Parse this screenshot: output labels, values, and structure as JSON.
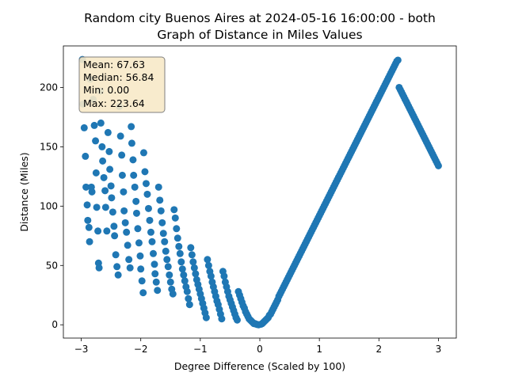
{
  "chart_data": {
    "type": "scatter",
    "title_line1": "Random city Buenos Aires at 2024-05-16 16:00:00  - both",
    "title_line2": "Graph of Distance in Miles Values",
    "xlabel": "Degree Difference (Scaled by 100)",
    "ylabel": "Distance (Miles)",
    "xlim": [
      -3.3,
      3.3
    ],
    "ylim": [
      -11.2,
      235
    ],
    "xticks": [
      -3,
      -2,
      -1,
      0,
      1,
      2,
      3
    ],
    "xtick_labels": [
      "−3",
      "−2",
      "−1",
      "0",
      "1",
      "2",
      "3"
    ],
    "yticks": [
      0,
      50,
      100,
      150,
      200
    ],
    "ytick_labels": [
      "0",
      "50",
      "100",
      "150",
      "200"
    ],
    "grid": false,
    "marker_color": "#1f77b4",
    "stats_box": {
      "mean": "Mean: 67.63",
      "median": "Median: 56.84",
      "min": "Min: 0.00",
      "max": "Max: 223.64",
      "facecolor": "#f7e9c8",
      "placement": "top-left"
    },
    "points": [
      [
        -2.98,
        223.6
      ],
      [
        -2.97,
        186
      ],
      [
        -2.95,
        166
      ],
      [
        -2.93,
        142
      ],
      [
        -2.92,
        116
      ],
      [
        -2.9,
        101
      ],
      [
        -2.89,
        88
      ],
      [
        -2.87,
        82
      ],
      [
        -2.86,
        70
      ],
      [
        -2.85,
        207
      ],
      [
        -2.83,
        116
      ],
      [
        -2.82,
        112
      ],
      [
        -2.8,
        190
      ],
      [
        -2.78,
        168
      ],
      [
        -2.76,
        155
      ],
      [
        -2.75,
        128
      ],
      [
        -2.74,
        99
      ],
      [
        -2.72,
        79
      ],
      [
        -2.71,
        52
      ],
      [
        -2.7,
        48
      ],
      [
        -2.68,
        197
      ],
      [
        -2.67,
        170
      ],
      [
        -2.65,
        150
      ],
      [
        -2.64,
        138
      ],
      [
        -2.62,
        124
      ],
      [
        -2.6,
        113
      ],
      [
        -2.59,
        99
      ],
      [
        -2.57,
        79
      ],
      [
        -2.55,
        162
      ],
      [
        -2.53,
        146
      ],
      [
        -2.52,
        131
      ],
      [
        -2.5,
        117
      ],
      [
        -2.49,
        107
      ],
      [
        -2.47,
        95
      ],
      [
        -2.45,
        83
      ],
      [
        -2.44,
        75
      ],
      [
        -2.42,
        59
      ],
      [
        -2.4,
        49
      ],
      [
        -2.38,
        42
      ],
      [
        -2.36,
        184
      ],
      [
        -2.34,
        159
      ],
      [
        -2.32,
        143
      ],
      [
        -2.31,
        126
      ],
      [
        -2.29,
        112
      ],
      [
        -2.28,
        96
      ],
      [
        -2.26,
        86
      ],
      [
        -2.24,
        78
      ],
      [
        -2.22,
        67
      ],
      [
        -2.2,
        55
      ],
      [
        -2.18,
        48
      ],
      [
        -2.16,
        167
      ],
      [
        -2.15,
        153
      ],
      [
        -2.13,
        139
      ],
      [
        -2.12,
        126
      ],
      [
        -2.1,
        116
      ],
      [
        -2.08,
        104
      ],
      [
        -2.07,
        94
      ],
      [
        -2.05,
        81
      ],
      [
        -2.03,
        69
      ],
      [
        -2.01,
        58
      ],
      [
        -2.0,
        47
      ],
      [
        -1.98,
        37
      ],
      [
        -1.96,
        27
      ],
      [
        -1.95,
        145
      ],
      [
        -1.93,
        129
      ],
      [
        -1.91,
        119
      ],
      [
        -1.89,
        110
      ],
      [
        -1.87,
        98
      ],
      [
        -1.85,
        88
      ],
      [
        -1.83,
        78
      ],
      [
        -1.81,
        70
      ],
      [
        -1.79,
        60
      ],
      [
        -1.77,
        51
      ],
      [
        -1.76,
        43
      ],
      [
        -1.74,
        36
      ],
      [
        -1.72,
        29
      ],
      [
        -1.7,
        116
      ],
      [
        -1.68,
        105
      ],
      [
        -1.66,
        96
      ],
      [
        -1.64,
        86
      ],
      [
        -1.62,
        77
      ],
      [
        -1.6,
        70
      ],
      [
        -1.58,
        62
      ],
      [
        -1.56,
        55
      ],
      [
        -1.54,
        49
      ],
      [
        -1.52,
        42
      ],
      [
        -1.5,
        36
      ],
      [
        -1.48,
        30
      ],
      [
        -1.46,
        26
      ],
      [
        -1.44,
        97
      ],
      [
        -1.42,
        90
      ],
      [
        -1.4,
        81
      ],
      [
        -1.38,
        73
      ],
      [
        -1.36,
        66
      ],
      [
        -1.34,
        60
      ],
      [
        -1.32,
        53
      ],
      [
        -1.3,
        47
      ],
      [
        -1.28,
        42
      ],
      [
        -1.26,
        37
      ],
      [
        -1.24,
        32
      ],
      [
        -1.22,
        28
      ],
      [
        -1.2,
        22
      ],
      [
        -1.18,
        17
      ],
      [
        -1.16,
        65
      ],
      [
        -1.14,
        59
      ],
      [
        -1.12,
        53
      ],
      [
        -1.1,
        48
      ],
      [
        -1.08,
        43
      ],
      [
        -1.06,
        38
      ],
      [
        -1.04,
        34
      ],
      [
        -1.02,
        30
      ],
      [
        -1.0,
        26
      ],
      [
        -0.98,
        22
      ],
      [
        -0.96,
        18
      ],
      [
        -0.94,
        14
      ],
      [
        -0.92,
        10
      ],
      [
        -0.9,
        6
      ],
      [
        -0.88,
        55
      ],
      [
        -0.86,
        50
      ],
      [
        -0.84,
        45
      ],
      [
        -0.82,
        41
      ],
      [
        -0.8,
        36
      ],
      [
        -0.78,
        32
      ],
      [
        -0.76,
        28
      ],
      [
        -0.74,
        24
      ],
      [
        -0.72,
        20
      ],
      [
        -0.7,
        17
      ],
      [
        -0.68,
        13
      ],
      [
        -0.66,
        9
      ],
      [
        -0.64,
        5
      ],
      [
        -0.62,
        45
      ],
      [
        -0.6,
        41
      ],
      [
        -0.58,
        36
      ],
      [
        -0.56,
        32
      ],
      [
        -0.54,
        28
      ],
      [
        -0.52,
        24
      ],
      [
        -0.5,
        21
      ],
      [
        -0.48,
        18
      ],
      [
        -0.46,
        15
      ],
      [
        -0.44,
        12
      ],
      [
        -0.42,
        9
      ],
      [
        -0.4,
        6
      ],
      [
        -0.38,
        4
      ],
      [
        -0.36,
        28
      ],
      [
        -0.34,
        25
      ],
      [
        -0.32,
        22
      ],
      [
        -0.3,
        19
      ],
      [
        -0.28,
        16
      ],
      [
        -0.26,
        14
      ],
      [
        -0.24,
        11
      ],
      [
        -0.22,
        9
      ],
      [
        -0.2,
        7
      ],
      [
        -0.18,
        5
      ],
      [
        -0.16,
        4
      ],
      [
        -0.14,
        3
      ],
      [
        -0.12,
        2
      ],
      [
        -0.1,
        1
      ],
      [
        -0.08,
        1
      ],
      [
        -0.06,
        0.5
      ],
      [
        -0.04,
        0.2
      ],
      [
        -0.02,
        0
      ],
      [
        0.02,
        0.5
      ],
      [
        0.04,
        1
      ],
      [
        0.06,
        2
      ],
      [
        0.08,
        3
      ],
      [
        0.1,
        4
      ],
      [
        0.12,
        5
      ],
      [
        0.14,
        6
      ],
      [
        0.16,
        8
      ],
      [
        0.18,
        9
      ],
      [
        0.2,
        11
      ],
      [
        0.22,
        13
      ],
      [
        0.24,
        15
      ],
      [
        0.26,
        17
      ],
      [
        0.28,
        19
      ],
      [
        0.3,
        21
      ],
      [
        0.32,
        24
      ],
      [
        0.34,
        26
      ],
      [
        0.36,
        28
      ],
      [
        0.38,
        30
      ],
      [
        0.4,
        32
      ],
      [
        0.42,
        34
      ],
      [
        0.44,
        36
      ],
      [
        0.46,
        38
      ],
      [
        0.48,
        40
      ],
      [
        0.5,
        42
      ],
      [
        0.52,
        44
      ],
      [
        0.54,
        46
      ],
      [
        0.56,
        48
      ],
      [
        0.58,
        50
      ],
      [
        0.6,
        52
      ],
      [
        0.62,
        54
      ],
      [
        0.64,
        56
      ],
      [
        0.66,
        58
      ],
      [
        0.68,
        60
      ],
      [
        0.7,
        62
      ],
      [
        0.72,
        64
      ],
      [
        0.74,
        66
      ],
      [
        0.76,
        68
      ],
      [
        0.78,
        70
      ],
      [
        0.8,
        72
      ],
      [
        0.82,
        74
      ],
      [
        0.84,
        76
      ],
      [
        0.86,
        78
      ],
      [
        0.88,
        80
      ],
      [
        0.9,
        82
      ],
      [
        0.92,
        84
      ],
      [
        0.94,
        86
      ],
      [
        0.96,
        88
      ],
      [
        0.98,
        90
      ],
      [
        1.0,
        92
      ],
      [
        1.02,
        94
      ],
      [
        1.04,
        96
      ],
      [
        1.06,
        98
      ],
      [
        1.08,
        100
      ],
      [
        1.1,
        102
      ],
      [
        1.12,
        104
      ],
      [
        1.14,
        106
      ],
      [
        1.16,
        108
      ],
      [
        1.18,
        110
      ],
      [
        1.2,
        112
      ],
      [
        1.22,
        114
      ],
      [
        1.24,
        116
      ],
      [
        1.26,
        118
      ],
      [
        1.28,
        120
      ],
      [
        1.3,
        122
      ],
      [
        1.32,
        124
      ],
      [
        1.34,
        126
      ],
      [
        1.36,
        128
      ],
      [
        1.38,
        130
      ],
      [
        1.4,
        132
      ],
      [
        1.42,
        134
      ],
      [
        1.44,
        136
      ],
      [
        1.46,
        138
      ],
      [
        1.48,
        140
      ],
      [
        1.5,
        142
      ],
      [
        1.52,
        144
      ],
      [
        1.54,
        146
      ],
      [
        1.56,
        148
      ],
      [
        1.58,
        150
      ],
      [
        1.6,
        152
      ],
      [
        1.62,
        154
      ],
      [
        1.64,
        156
      ],
      [
        1.66,
        158
      ],
      [
        1.68,
        160
      ],
      [
        1.7,
        162
      ],
      [
        1.72,
        164
      ],
      [
        1.74,
        166
      ],
      [
        1.76,
        168
      ],
      [
        1.78,
        170
      ],
      [
        1.8,
        172
      ],
      [
        1.82,
        174
      ],
      [
        1.84,
        176
      ],
      [
        1.86,
        178
      ],
      [
        1.88,
        180
      ],
      [
        1.9,
        182
      ],
      [
        1.92,
        184
      ],
      [
        1.94,
        186
      ],
      [
        1.96,
        188
      ],
      [
        1.98,
        190
      ],
      [
        2.0,
        192
      ],
      [
        2.02,
        194
      ],
      [
        2.04,
        196
      ],
      [
        2.06,
        198
      ],
      [
        2.08,
        200
      ],
      [
        2.1,
        202
      ],
      [
        2.12,
        204
      ],
      [
        2.14,
        206
      ],
      [
        2.16,
        208
      ],
      [
        2.18,
        210
      ],
      [
        2.2,
        212
      ],
      [
        2.22,
        214
      ],
      [
        2.24,
        216
      ],
      [
        2.26,
        218
      ],
      [
        2.28,
        220
      ],
      [
        2.3,
        222
      ],
      [
        2.32,
        223
      ],
      [
        2.34,
        200
      ],
      [
        2.36,
        198
      ],
      [
        2.38,
        196
      ],
      [
        2.4,
        194
      ],
      [
        2.42,
        192
      ],
      [
        2.44,
        190
      ],
      [
        2.46,
        188
      ],
      [
        2.48,
        186
      ],
      [
        2.5,
        184
      ],
      [
        2.52,
        182
      ],
      [
        2.54,
        180
      ],
      [
        2.56,
        178
      ],
      [
        2.58,
        176
      ],
      [
        2.6,
        174
      ],
      [
        2.62,
        172
      ],
      [
        2.64,
        170
      ],
      [
        2.66,
        168
      ],
      [
        2.68,
        166
      ],
      [
        2.7,
        164
      ],
      [
        2.72,
        162
      ],
      [
        2.74,
        160
      ],
      [
        2.76,
        158
      ],
      [
        2.78,
        156
      ],
      [
        2.8,
        154
      ],
      [
        2.82,
        152
      ],
      [
        2.84,
        150
      ],
      [
        2.86,
        148
      ],
      [
        2.88,
        146
      ],
      [
        2.9,
        144
      ],
      [
        2.92,
        142
      ],
      [
        2.94,
        140
      ],
      [
        2.96,
        138
      ],
      [
        2.98,
        136
      ],
      [
        3.0,
        134
      ]
    ]
  }
}
